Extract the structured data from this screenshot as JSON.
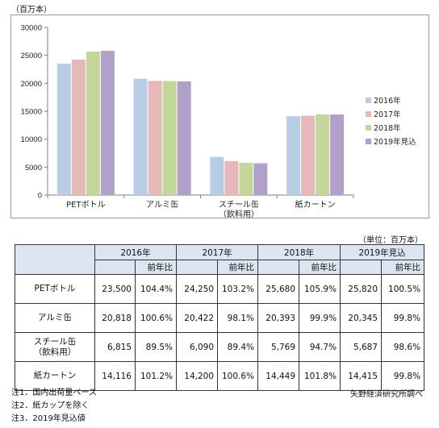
{
  "chart_data": {
    "type": "bar",
    "y_unit": "（百万本）",
    "categories": [
      "PETボトル",
      "アルミ缶",
      "スチール缶",
      "紙カートン"
    ],
    "category_sublabels": [
      "",
      "",
      "（飲料用）",
      ""
    ],
    "series": [
      {
        "name": "2016年",
        "values": [
          23500,
          20818,
          6815,
          14116
        ],
        "color": "#b8cce4"
      },
      {
        "name": "2017年",
        "values": [
          24250,
          20422,
          6090,
          14200
        ],
        "color": "#e6b9b8"
      },
      {
        "name": "2018年",
        "values": [
          25680,
          20393,
          5769,
          14449
        ],
        "color": "#c4d79b"
      },
      {
        "name": "2019年見込",
        "values": [
          25820,
          20345,
          5687,
          14415
        ],
        "color": "#b1a0c7"
      }
    ],
    "ylim": [
      0,
      30000
    ],
    "yticks": [
      "0",
      "5000",
      "10000",
      "15000",
      "20000",
      "25000",
      "30000"
    ],
    "legend": "right",
    "grid": false
  },
  "table": {
    "unit": "（単位：百万本）",
    "years": [
      "2016年",
      "2017年",
      "2018年",
      "2019年見込"
    ],
    "sub": "前年比",
    "rows": [
      {
        "label": [
          "PETボトル"
        ],
        "cells": [
          "23,500",
          "104.4%",
          "24,250",
          "103.2%",
          "25,680",
          "105.9%",
          "25,820",
          "100.5%"
        ]
      },
      {
        "label": [
          "アルミ缶"
        ],
        "cells": [
          "20,818",
          "100.6%",
          "20,422",
          "98.1%",
          "20,393",
          "99.9%",
          "20,345",
          "99.8%"
        ]
      },
      {
        "label": [
          "スチール缶",
          "（飲料用）"
        ],
        "cells": [
          "6,815",
          "89.5%",
          "6,090",
          "89.4%",
          "5,769",
          "94.7%",
          "5,687",
          "98.6%"
        ]
      },
      {
        "label": [
          "紙カートン"
        ],
        "cells": [
          "14,116",
          "101.2%",
          "14,200",
          "100.6%",
          "14,449",
          "101.8%",
          "14,415",
          "99.8%"
        ]
      }
    ]
  },
  "notes": [
    "注1．国内出荷量ベース",
    "注2．紙カップを除く",
    "注3．2019年見込値"
  ],
  "source": "矢野経済研究所調べ"
}
